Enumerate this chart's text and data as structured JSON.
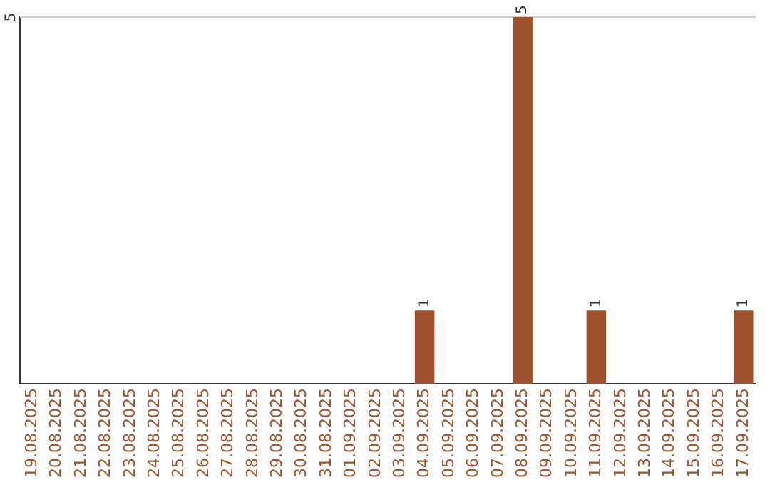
{
  "chart_data": {
    "type": "bar",
    "categories": [
      "19.08.2025",
      "20.08.2025",
      "21.08.2025",
      "22.08.2025",
      "23.08.2025",
      "24.08.2025",
      "25.08.2025",
      "26.08.2025",
      "27.08.2025",
      "28.08.2025",
      "29.08.2025",
      "30.08.2025",
      "31.08.2025",
      "01.09.2025",
      "02.09.2025",
      "03.09.2025",
      "04.09.2025",
      "05.09.2025",
      "06.09.2025",
      "07.09.2025",
      "08.09.2025",
      "09.09.2025",
      "10.09.2025",
      "11.09.2025",
      "12.09.2025",
      "13.09.2025",
      "14.09.2025",
      "15.09.2025",
      "16.09.2025",
      "17.09.2025"
    ],
    "values": [
      null,
      null,
      null,
      null,
      null,
      null,
      null,
      null,
      null,
      null,
      null,
      null,
      null,
      null,
      null,
      null,
      1,
      null,
      null,
      null,
      5,
      null,
      null,
      1,
      null,
      null,
      null,
      null,
      null,
      1
    ],
    "value_labels": [
      null,
      null,
      null,
      null,
      null,
      null,
      null,
      null,
      null,
      null,
      null,
      null,
      null,
      null,
      null,
      null,
      "1",
      null,
      null,
      null,
      "5",
      null,
      null,
      "1",
      null,
      null,
      null,
      null,
      null,
      "1"
    ],
    "color": "#a0522d",
    "ref_lines": [
      {
        "axis": "y",
        "value": 5,
        "label": "5",
        "color": "#cccccc"
      }
    ],
    "legend": false
  }
}
